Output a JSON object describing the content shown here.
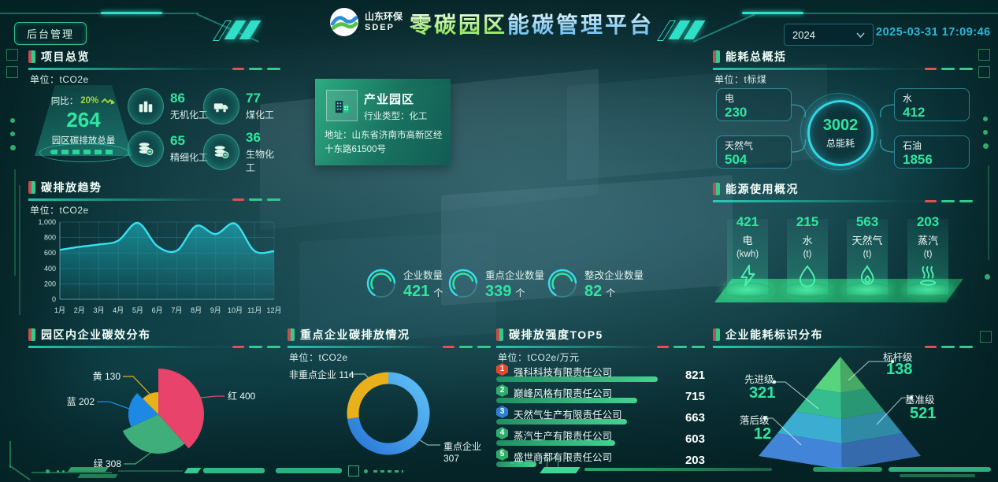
{
  "colors": {
    "accent_green": "#2fe6a0",
    "accent_cyan": "#2bd8e8",
    "line_cyan": "#38e0ef",
    "red": "#e0492f",
    "yellow": "#e8b019",
    "blue": "#2f7fd8",
    "bar_green": "#43d392"
  },
  "header": {
    "admin_button": "后台管理",
    "logo_name": "山东环保",
    "logo_abbr": "SDEP",
    "title_part1": "零碳园区",
    "title_part2": "能碳管理平台",
    "year": "2024",
    "datetime": "2025-03-31 17:09:46"
  },
  "project_overview": {
    "title": "项目总览",
    "unit": "单位：tCO2e",
    "total": {
      "yoy_label": "同比：",
      "yoy_value": "20%",
      "value": "264",
      "label": "园区碳排放总量"
    },
    "stats": [
      {
        "value": "86",
        "label": "无机化工",
        "icon": "barrels-icon"
      },
      {
        "value": "77",
        "label": "煤化工",
        "icon": "truck-icon"
      },
      {
        "value": "65",
        "label": "精细化工",
        "icon": "coins-icon"
      },
      {
        "value": "36",
        "label": "生物化工",
        "icon": "coins-icon"
      }
    ]
  },
  "emission_trend": {
    "title": "碳排放趋势",
    "unit": "单位：tCO2e",
    "chart_data": {
      "type": "line",
      "x": [
        "1月",
        "2月",
        "3月",
        "4月",
        "5月",
        "6月",
        "7月",
        "8月",
        "9月",
        "10月",
        "11月",
        "12月"
      ],
      "values": [
        640,
        680,
        710,
        760,
        990,
        690,
        630,
        950,
        845,
        980,
        625,
        625
      ],
      "yticks": [
        0,
        200,
        400,
        600,
        800,
        1000
      ],
      "ylim": [
        0,
        1000
      ],
      "grid": true
    }
  },
  "carbon_efficiency": {
    "title": "园区内企业碳效分布",
    "chart_data": {
      "type": "pie",
      "subtype": "rose",
      "items": [
        {
          "name": "红",
          "value": 400,
          "color": "#e8436a",
          "radius": 58
        },
        {
          "name": "绿",
          "value": 308,
          "color": "#3fae7a",
          "radius": 50
        },
        {
          "name": "蓝",
          "value": 202,
          "color": "#1e88e5",
          "radius": 38
        },
        {
          "name": "黄",
          "value": 130,
          "color": "#e8b019",
          "radius": 28
        }
      ]
    }
  },
  "key_enterprise": {
    "title": "重点企业碳排放情况",
    "unit": "单位：tCO2e",
    "chart_data": {
      "type": "pie",
      "subtype": "donut",
      "items": [
        {
          "name": "重点企业",
          "value": 307,
          "color": "#3da4f0"
        },
        {
          "name": "非重点企业",
          "value": 114,
          "color": "#e8b019"
        }
      ]
    }
  },
  "intensity_top5": {
    "title": "碳排放强度TOP5",
    "unit": "单位：tCO2e/万元",
    "chart_data": {
      "type": "bar",
      "max": 821
    },
    "items": [
      {
        "rank": "1",
        "name": "强科科技有限责任公司",
        "value": 821,
        "badge_color": "#e0492f"
      },
      {
        "rank": "2",
        "name": "巅峰风格有限责任公司",
        "value": 715,
        "badge_color": "#2fae6b"
      },
      {
        "rank": "3",
        "name": "天然气生产有限责任公司",
        "value": 663,
        "badge_color": "#2f7fd8"
      },
      {
        "rank": "4",
        "name": "蒸汽生产有限责任公司",
        "value": 603,
        "badge_color": "#2fae6b"
      },
      {
        "rank": "5",
        "name": "盛世商都有限责任公司",
        "value": 203,
        "badge_color": "#2fae6b"
      }
    ]
  },
  "energy_summary": {
    "title": "能耗总概括",
    "unit": "单位：t标煤",
    "total": {
      "value": "3002",
      "label": "总能耗"
    },
    "items": [
      {
        "label": "电",
        "value": "230"
      },
      {
        "label": "水",
        "value": "412"
      },
      {
        "label": "天然气",
        "value": "504"
      },
      {
        "label": "石油",
        "value": "1856"
      }
    ]
  },
  "energy_usage": {
    "title": "能源使用概况",
    "items": [
      {
        "value": "421",
        "label": "电",
        "unit": "(kwh)",
        "icon": "lightning-icon"
      },
      {
        "value": "215",
        "label": "水",
        "unit": "(t)",
        "icon": "water-drop-icon"
      },
      {
        "value": "563",
        "label": "天然气",
        "unit": "(t)",
        "icon": "flame-icon"
      },
      {
        "value": "203",
        "label": "蒸汽",
        "unit": "(t)",
        "icon": "steam-icon"
      }
    ]
  },
  "energy_label_pyramid": {
    "title": "企业能耗标识分布",
    "chart_data": {
      "type": "pyramid"
    },
    "levels": [
      {
        "name": "标杆级",
        "value": "138",
        "color": "#58d37e"
      },
      {
        "name": "先进级",
        "value": "321",
        "color": "#35bd90"
      },
      {
        "name": "基准级",
        "value": "521",
        "color": "#3badd0"
      },
      {
        "name": "落后级",
        "value": "12",
        "color": "#4285d8"
      }
    ]
  },
  "park_card": {
    "title": "产业园区",
    "industry": "行业类型：化工",
    "address": "地址：山东省济南市高新区经十东路61500号"
  },
  "center_stats": [
    {
      "label": "企业数量",
      "value": "421",
      "unit": "个"
    },
    {
      "label": "重点企业数量",
      "value": "339",
      "unit": "个"
    },
    {
      "label": "整改企业数量",
      "value": "82",
      "unit": "个"
    }
  ]
}
